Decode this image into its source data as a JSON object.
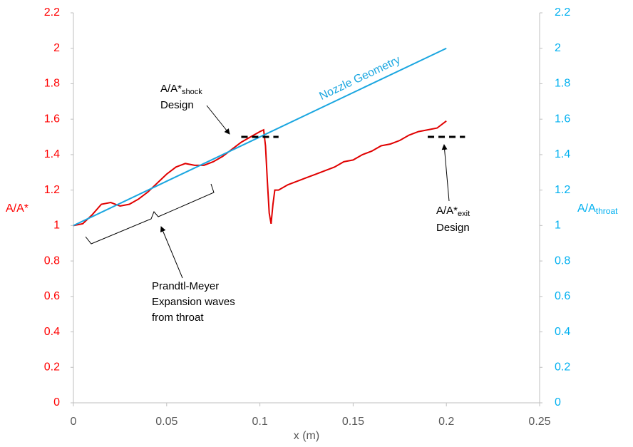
{
  "chart_data": {
    "type": "line",
    "xlabel": "x (m)",
    "ylabel": "A/A*",
    "y2label": {
      "text": "A/A",
      "sub": "throat"
    },
    "xlim": [
      0,
      0.25
    ],
    "xticks": [
      0,
      0.05,
      0.1,
      0.15,
      0.2,
      0.25
    ],
    "ylim": [
      0,
      2.2
    ],
    "yticks": [
      0,
      0.2,
      0.4,
      0.6,
      0.8,
      1,
      1.2,
      1.4,
      1.6,
      1.8,
      2,
      2.2
    ],
    "y2lim": [
      0,
      2.2
    ],
    "y2ticks": [
      0,
      0.2,
      0.4,
      0.6,
      0.8,
      1,
      1.2,
      1.4,
      1.6,
      1.8,
      2,
      2.2
    ],
    "ycolor": "#ff0000",
    "y2color": "#00b0f0",
    "series": [
      {
        "color": "#e00000",
        "axis": "y",
        "x": [
          0,
          0.005,
          0.01,
          0.015,
          0.02,
          0.025,
          0.03,
          0.035,
          0.04,
          0.045,
          0.05,
          0.055,
          0.06,
          0.065,
          0.07,
          0.075,
          0.08,
          0.085,
          0.09,
          0.095,
          0.1,
          0.102,
          0.103,
          0.104,
          0.105,
          0.106,
          0.107,
          0.108,
          0.11,
          0.115,
          0.12,
          0.125,
          0.13,
          0.135,
          0.14,
          0.145,
          0.15,
          0.155,
          0.16,
          0.165,
          0.17,
          0.175,
          0.18,
          0.185,
          0.19,
          0.195,
          0.2
        ],
        "values": [
          1.0,
          1.01,
          1.06,
          1.12,
          1.13,
          1.11,
          1.12,
          1.15,
          1.19,
          1.24,
          1.29,
          1.33,
          1.35,
          1.34,
          1.34,
          1.36,
          1.39,
          1.43,
          1.47,
          1.5,
          1.53,
          1.54,
          1.45,
          1.25,
          1.07,
          1.01,
          1.12,
          1.2,
          1.2,
          1.23,
          1.25,
          1.27,
          1.29,
          1.31,
          1.33,
          1.36,
          1.37,
          1.4,
          1.42,
          1.45,
          1.46,
          1.48,
          1.51,
          1.53,
          1.54,
          1.55,
          1.59
        ]
      },
      {
        "color": "#1aa6e0",
        "axis": "y2",
        "x": [
          0,
          0.05,
          0.1,
          0.15,
          0.2
        ],
        "values": [
          1,
          1.25,
          1.5,
          1.75,
          2
        ]
      },
      {
        "color": "#000000",
        "axis": "y",
        "dashed": true,
        "x": [
          0.09,
          0.11
        ],
        "values": [
          1.5,
          1.5
        ]
      },
      {
        "color": "#000000",
        "axis": "y",
        "dashed": true,
        "x": [
          0.19,
          0.21
        ],
        "values": [
          1.5,
          1.5
        ]
      }
    ],
    "annotations": {
      "nozzle": "Nozzle Geometry",
      "shock": {
        "text": "A/A*",
        "sub": "shock",
        "line2": "Design"
      },
      "exit": {
        "text": "A/A*",
        "sub": "exit",
        "line2": "Design"
      },
      "waves": [
        "Prandtl-Meyer",
        "Expansion waves",
        "from throat"
      ]
    }
  }
}
